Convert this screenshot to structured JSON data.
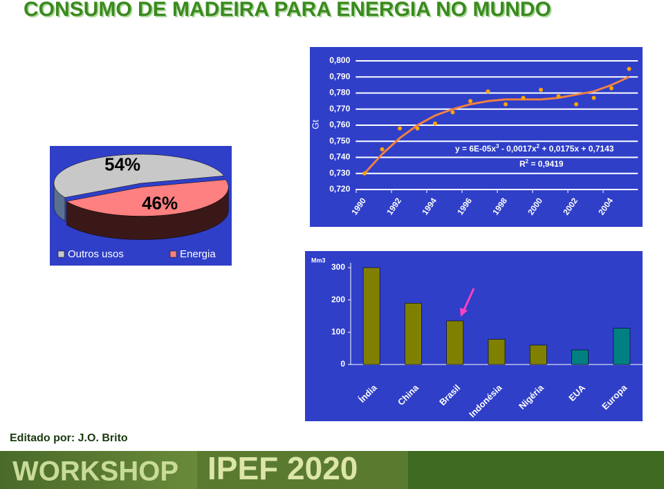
{
  "title": "CONSUMO DE MADEIRA PARA ENERGIA NO MUNDO",
  "credit": "Editado por: J.O. Brito",
  "banner": [
    "WORKSHOP",
    "IPEF 2020"
  ],
  "chart_data": [
    {
      "type": "pie",
      "categories": [
        "Outros usos",
        "Energia"
      ],
      "values": [
        54,
        46
      ],
      "value_labels": [
        "54%",
        "46%"
      ],
      "colors": [
        "#c8c8c8",
        "#ff8080"
      ],
      "legend": "bottom"
    },
    {
      "type": "scatter",
      "ylabel": "Gt",
      "x": [
        1990,
        1991,
        1992,
        1993,
        1994,
        1995,
        1996,
        1997,
        1998,
        1999,
        2000,
        2001,
        2002,
        2003,
        2004,
        2005
      ],
      "values": [
        0.73,
        0.745,
        0.758,
        0.758,
        0.761,
        0.768,
        0.775,
        0.781,
        0.773,
        0.777,
        0.782,
        0.778,
        0.773,
        0.777,
        0.783,
        0.795
      ],
      "color": "#ffa500",
      "trend": {
        "color": "#f08040",
        "values": [
          0.73,
          0.742,
          0.752,
          0.76,
          0.766,
          0.77,
          0.773,
          0.775,
          0.776,
          0.776,
          0.776,
          0.777,
          0.779,
          0.781,
          0.785,
          0.79
        ]
      },
      "xlim": [
        1989.5,
        2005.5
      ],
      "xticks": [
        1990,
        1992,
        1994,
        1996,
        1998,
        2000,
        2002,
        2004
      ],
      "ylim": [
        0.72,
        0.8
      ],
      "yticks": [
        {
          "value": 0.72,
          "label": "0,720"
        },
        {
          "value": 0.73,
          "label": "0,730"
        },
        {
          "value": 0.74,
          "label": "0,740"
        },
        {
          "value": 0.75,
          "label": "0,750"
        },
        {
          "value": 0.76,
          "label": "0,760"
        },
        {
          "value": 0.77,
          "label": "0,770"
        },
        {
          "value": 0.78,
          "label": "0,780"
        },
        {
          "value": 0.79,
          "label": "0,790"
        },
        {
          "value": 0.8,
          "label": "0,800"
        }
      ],
      "grid": true,
      "equation": [
        "y = 6E-05x",
        "3",
        " - 0,0017x",
        "2",
        " + 0,0175x + 0,7143"
      ],
      "r2": [
        "R",
        "2",
        " = 0,9419"
      ]
    },
    {
      "type": "bar",
      "ylabel": "Mm3",
      "categories": [
        "Índia",
        "China",
        "Brasil",
        "Indonésia",
        "Nigéria",
        "EUA",
        "Europa"
      ],
      "values": [
        300,
        190,
        135,
        78,
        60,
        45,
        112
      ],
      "colors": [
        "#808000",
        "#808000",
        "#808000",
        "#808000",
        "#808000",
        "#008080",
        "#008080"
      ],
      "ylim": [
        0,
        315
      ],
      "yticks": [
        0,
        100,
        200,
        300
      ]
    }
  ]
}
